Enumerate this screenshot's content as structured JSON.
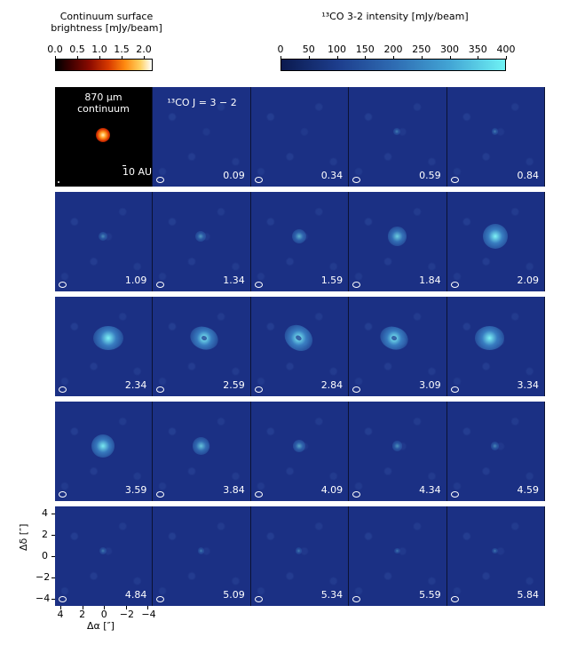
{
  "continuum_colorbar": {
    "title_line1": "Continuum surface",
    "title_line2": "brightness [mJy/beam]",
    "ticks": [
      "0.0",
      "0.5",
      "1.0",
      "1.5",
      "2.0"
    ],
    "range": [
      0,
      2.2
    ]
  },
  "co_colorbar": {
    "title": "¹³CO 3-2 intensity [mJy/beam]",
    "ticks": [
      "0",
      "50",
      "100",
      "150",
      "200",
      "250",
      "300",
      "350",
      "400"
    ],
    "range": [
      0,
      400
    ]
  },
  "continuum_panel": {
    "label_line1": "870 μm",
    "label_line2": "continuum",
    "scale_label": "10 AU"
  },
  "co_line_label": "¹³CO J = 3 − 2",
  "velocity_labels": [
    "",
    "0.09",
    "0.34",
    "0.59",
    "0.84",
    "1.09",
    "1.34",
    "1.59",
    "1.84",
    "2.09",
    "2.34",
    "2.59",
    "2.84",
    "3.09",
    "3.34",
    "3.59",
    "3.84",
    "4.09",
    "4.34",
    "4.59",
    "4.84",
    "5.09",
    "5.34",
    "5.59",
    "5.84"
  ],
  "emission_strength": [
    0,
    0,
    0,
    0.05,
    0.05,
    0.12,
    0.18,
    0.3,
    0.45,
    0.65,
    0.85,
    0.75,
    0.8,
    0.75,
    0.8,
    0.6,
    0.4,
    0.25,
    0.15,
    0.1,
    0.05,
    0.04,
    0.03,
    0.02,
    0.02
  ],
  "axes": {
    "ylabel": "Δδ [″]",
    "xlabel": "Δα [″]",
    "yticks": [
      "4",
      "2",
      "0",
      "−2",
      "−4"
    ],
    "xticks": [
      "4",
      "2",
      "0",
      "−2",
      "−4"
    ]
  },
  "colors": {
    "panel_background": "#1b3084",
    "emission_core": "#7ef4f6",
    "emission_mid": "#3f8fcf"
  }
}
